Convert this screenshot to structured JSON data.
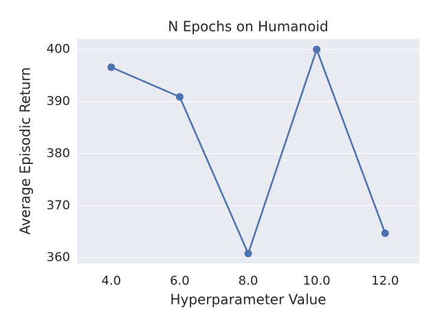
{
  "chart_data": {
    "type": "line",
    "title": "N Epochs on Humanoid",
    "x_label": "Hyperparameter Value",
    "y_label": "Average Episodic Return",
    "x": [
      4,
      6,
      8,
      10,
      12
    ],
    "series": [
      {
        "name": "N Epochs",
        "color": "#4c72b0",
        "values": [
          396.6,
          390.9,
          360.8,
          400.0,
          364.7
        ]
      }
    ],
    "xlim": [
      3,
      13
    ],
    "ylim": [
      358.9,
      402.0
    ],
    "xticks": [
      {
        "value": 4,
        "label": "4.0"
      },
      {
        "value": 6,
        "label": "6.0"
      },
      {
        "value": 8,
        "label": "8.0"
      },
      {
        "value": 10,
        "label": "10.0"
      },
      {
        "value": 12,
        "label": "12.0"
      }
    ],
    "yticks": [
      360,
      370,
      380,
      390,
      400
    ],
    "grid": "y",
    "legend": false
  }
}
